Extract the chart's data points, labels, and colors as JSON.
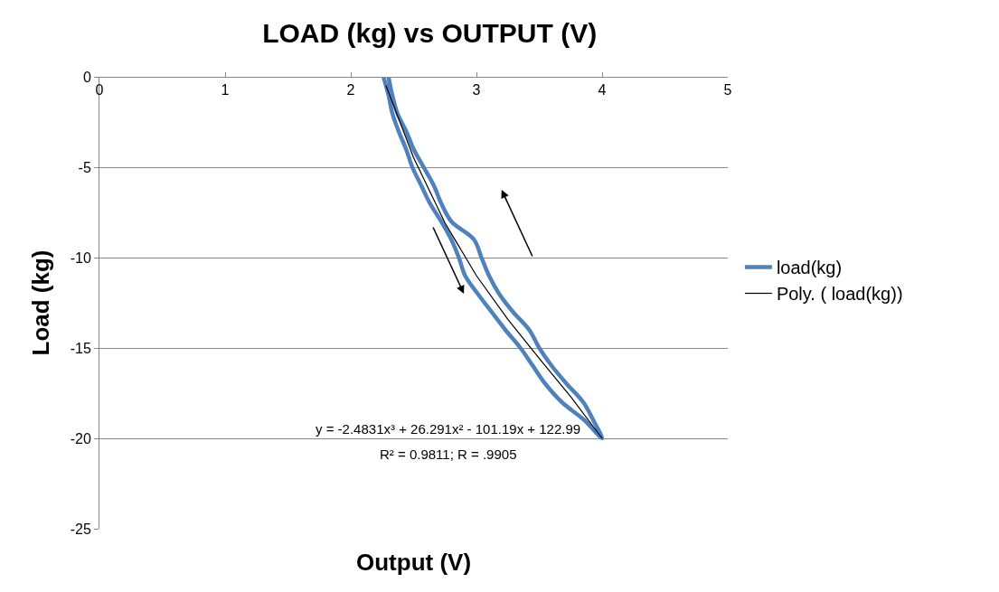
{
  "chart_data": {
    "type": "line",
    "title": "LOAD (kg) vs OUTPUT (V)",
    "xlabel": "Output (V)",
    "ylabel": "Load (kg)",
    "xlim": [
      0,
      5
    ],
    "xticks": [
      0,
      1,
      2,
      3,
      4,
      5
    ],
    "ylim": [
      -25,
      0
    ],
    "yticks": [
      -25,
      -20,
      -15,
      -10,
      -5,
      0
    ],
    "grid": "y",
    "legend": "right",
    "series": [
      {
        "name": "load(kg)",
        "color": "#4f81bd",
        "x": [
          2.26,
          2.3,
          2.33,
          2.38,
          2.44,
          2.49,
          2.56,
          2.63,
          2.72,
          2.8,
          2.86,
          2.91,
          3.01,
          3.12,
          3.23,
          3.35,
          3.45,
          3.55,
          3.68,
          3.86,
          4.0,
          3.93,
          3.85,
          3.72,
          3.6,
          3.5,
          3.42,
          3.29,
          3.18,
          3.1,
          3.04,
          2.98,
          2.8,
          2.72,
          2.66,
          2.58,
          2.5,
          2.44,
          2.37,
          2.33,
          2.3
        ],
        "values": [
          0,
          -1,
          -2,
          -3,
          -4,
          -5,
          -6,
          -7,
          -8,
          -9,
          -10,
          -11,
          -12,
          -13,
          -14,
          -15,
          -16,
          -17,
          -18,
          -19,
          -20,
          -19,
          -18,
          -17,
          -16,
          -15,
          -14,
          -13,
          -12,
          -11,
          -10,
          -9,
          -8,
          -7,
          -6,
          -5,
          -4,
          -3,
          -2,
          -1,
          0
        ]
      },
      {
        "name": "Poly. ( load(kg))",
        "color": "#000000",
        "type": "line",
        "x": [
          2.28,
          2.5,
          2.75,
          3,
          3.25,
          3.5,
          3.75,
          4
        ],
        "values": [
          -0.48,
          -4.47,
          -8.09,
          -11.0,
          -13.42,
          -15.58,
          -17.69,
          -20.0
        ]
      }
    ],
    "annotations": [
      "y = -2.4831x³ + 26.291x² - 101.19x + 122.99",
      "R² = 0.9811; R = .9905"
    ]
  }
}
